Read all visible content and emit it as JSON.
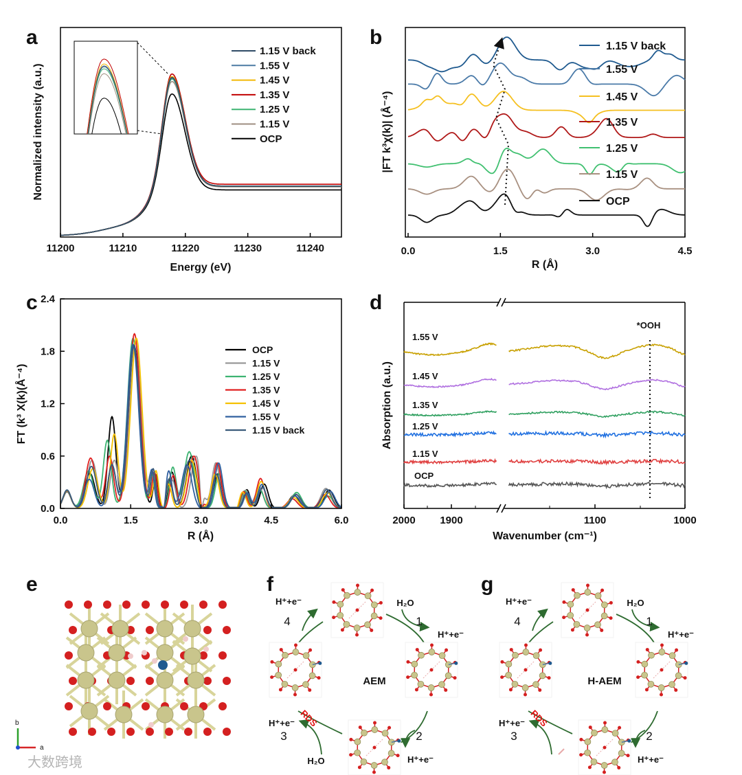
{
  "panels": {
    "a": "a",
    "b": "b",
    "c": "c",
    "d": "d",
    "e": "e",
    "f": "f",
    "g": "g"
  },
  "chart_data": [
    {
      "id": "a",
      "type": "line",
      "title": "",
      "xlabel": "Energy (eV)",
      "ylabel": "Normalized intensity (a.u.)",
      "xlim": [
        11200,
        11245
      ],
      "ylim": [
        0,
        4.2
      ],
      "xticks": [
        "11200",
        "11210",
        "11220",
        "11230",
        "11240"
      ],
      "xtick_values": [
        11200,
        11210,
        11220,
        11230,
        11240
      ],
      "legend_position": "right",
      "inset": "zoom of white-line peak",
      "series": [
        {
          "name": "1.15 V back",
          "color": "#2f4a66",
          "peak_energy": 11217.8,
          "peak_intensity": 3.18,
          "post_edge": 1.0
        },
        {
          "name": "1.55 V",
          "color": "#4a7aa2",
          "peak_energy": 11217.8,
          "peak_intensity": 3.17,
          "post_edge": 1.0
        },
        {
          "name": "1.45 V",
          "color": "#f2b705",
          "peak_energy": 11217.8,
          "peak_intensity": 3.2,
          "post_edge": 1.0
        },
        {
          "name": "1.35 V",
          "color": "#c00000",
          "peak_energy": 11217.8,
          "peak_intensity": 3.25,
          "post_edge": 1.05
        },
        {
          "name": "1.25 V",
          "color": "#3cb371",
          "peak_energy": 11217.8,
          "peak_intensity": 3.15,
          "post_edge": 1.0
        },
        {
          "name": "1.15 V",
          "color": "#9e8e80",
          "peak_energy": 11217.8,
          "peak_intensity": 3.1,
          "post_edge": 0.98
        },
        {
          "name": "OCP",
          "color": "#000000",
          "peak_energy": 11217.8,
          "peak_intensity": 2.85,
          "post_edge": 0.9
        }
      ]
    },
    {
      "id": "b",
      "type": "line",
      "xlabel": "R (Å)",
      "ylabel": "|FT k³χ(k)| (Å⁻⁴)",
      "xlim": [
        0,
        4.5
      ],
      "ylim": [
        0,
        10
      ],
      "xticks": [
        "0.0",
        "1.5",
        "3.0",
        "4.5"
      ],
      "xtick_values": [
        0,
        1.5,
        3.0,
        4.5
      ],
      "legend_position": "right",
      "series": [
        {
          "name": "1.15 V back",
          "color": "#1f5a8f",
          "offset": 8.45,
          "peak_R": 1.6,
          "peak_height": 1.1
        },
        {
          "name": "1.55 V",
          "color": "#4a7aa8",
          "offset": 7.3,
          "peak_R": 1.5,
          "peak_height": 1.0
        },
        {
          "name": "1.45 V",
          "color": "#f5c020",
          "offset": 6.05,
          "peak_R": 1.55,
          "peak_height": 0.9
        },
        {
          "name": "1.35 V",
          "color": "#b01818",
          "offset": 4.75,
          "peak_R": 1.57,
          "peak_height": 1.1
        },
        {
          "name": "1.25 V",
          "color": "#40c070",
          "offset": 3.5,
          "peak_R": 1.65,
          "peak_height": 1.2
        },
        {
          "name": "1.15 V",
          "color": "#a89080",
          "offset": 2.3,
          "peak_R": 1.62,
          "peak_height": 1.0
        },
        {
          "name": "OCP",
          "color": "#111111",
          "offset": 1.05,
          "peak_R": 1.6,
          "peak_height": 1.0
        }
      ]
    },
    {
      "id": "c",
      "type": "line",
      "xlabel": "R (Å)",
      "ylabel": "FT (k³ X(k)(Å⁻⁴)",
      "xlim": [
        0,
        6
      ],
      "ylim": [
        0,
        2.4
      ],
      "xticks": [
        "0.0",
        "1.5",
        "3.0",
        "4.5",
        "6.0"
      ],
      "xtick_values": [
        0,
        1.5,
        3.0,
        4.5,
        6.0
      ],
      "yticks": [
        "0.0",
        "0.6",
        "1.2",
        "1.8",
        "2.4"
      ],
      "ytick_values": [
        0,
        0.6,
        1.2,
        1.8,
        2.4
      ],
      "legend_position": "center-right",
      "series": [
        {
          "name": "OCP",
          "color": "#000000",
          "peak_R": 1.58,
          "peak_height": 1.85,
          "shoulder_R": 1.1,
          "shoulder_height": 1.05,
          "second_R": 2.8,
          "second_height": 0.6
        },
        {
          "name": "1.15 V",
          "color": "#999999",
          "peak_R": 1.6,
          "peak_height": 1.9,
          "shoulder_R": 1.15,
          "shoulder_height": 0.55,
          "second_R": 2.9,
          "second_height": 0.6
        },
        {
          "name": "1.25 V",
          "color": "#3cb371",
          "peak_R": 1.55,
          "peak_height": 1.95,
          "shoulder_R": 1.0,
          "shoulder_height": 0.78,
          "second_R": 2.75,
          "second_height": 0.65
        },
        {
          "name": "1.35 V",
          "color": "#e02020",
          "peak_R": 1.58,
          "peak_height": 2.0,
          "shoulder_R": 1.05,
          "shoulder_height": 0.6,
          "second_R": 2.85,
          "second_height": 0.6
        },
        {
          "name": "1.45 V",
          "color": "#f5c000",
          "peak_R": 1.62,
          "peak_height": 1.95,
          "shoulder_R": 1.15,
          "shoulder_height": 0.85,
          "second_R": 2.8,
          "second_height": 0.55
        },
        {
          "name": "1.55 V",
          "color": "#2f5f9f",
          "peak_R": 1.55,
          "peak_height": 1.88,
          "shoulder_R": 1.1,
          "shoulder_height": 0.5,
          "second_R": 2.7,
          "second_height": 0.5
        },
        {
          "name": "1.15 V back",
          "color": "#3a5a7a",
          "peak_R": 1.57,
          "peak_height": 1.87,
          "shoulder_R": 1.1,
          "shoulder_height": 0.5,
          "second_R": 2.75,
          "second_height": 0.55
        }
      ]
    },
    {
      "id": "d",
      "type": "line",
      "xlabel": "Wavenumber (cm⁻¹)",
      "ylabel": "Absorption (a.u.)",
      "x_segments": [
        [
          2000,
          1800
        ],
        [
          1200,
          1000
        ]
      ],
      "xticks": [
        "2000",
        "1900",
        "1100",
        "1000"
      ],
      "xtick_values": [
        2000,
        1900,
        1100,
        1000
      ],
      "annotation": "*OOH",
      "annotation_x": 1040,
      "series": [
        {
          "name": "1.55 V",
          "color": "#c8a000",
          "offset": 6,
          "feature": 1.0
        },
        {
          "name": "1.45 V",
          "color": "#b070e0",
          "offset": 5,
          "feature": 0.7
        },
        {
          "name": "1.35 V",
          "color": "#30a060",
          "offset": 4,
          "feature": 0.35
        },
        {
          "name": "1.25 V",
          "color": "#2070e0",
          "offset": 3,
          "feature": 0.15
        },
        {
          "name": "1.15 V",
          "color": "#e04040",
          "offset": 2,
          "feature": 0.1
        },
        {
          "name": "OCP",
          "color": "#555555",
          "offset": 1,
          "feature": 0.2
        }
      ]
    }
  ],
  "structure_e": {
    "axis_b": "b",
    "axis_a": "a"
  },
  "cycle_f": {
    "center": "AEM",
    "step1": "1",
    "step2": "2",
    "step3": "3",
    "step4": "4",
    "in1": "H₂O",
    "out1": "H⁺+e⁻",
    "out2": "H⁺+e⁻",
    "out3": "H⁺+e⁻",
    "in3": "H₂O",
    "out4": "H⁺+e⁻",
    "rds": "RDS"
  },
  "cycle_g": {
    "center": "H-AEM",
    "step1": "1",
    "step2": "2",
    "step3": "3",
    "step4": "4",
    "in1": "H₂O",
    "out1": "H⁺+e⁻",
    "out2": "H⁺+e⁻",
    "out3": "H⁺+e⁻",
    "out4": "H⁺+e⁻",
    "rds": "RDS"
  },
  "watermark": "大数跨境"
}
